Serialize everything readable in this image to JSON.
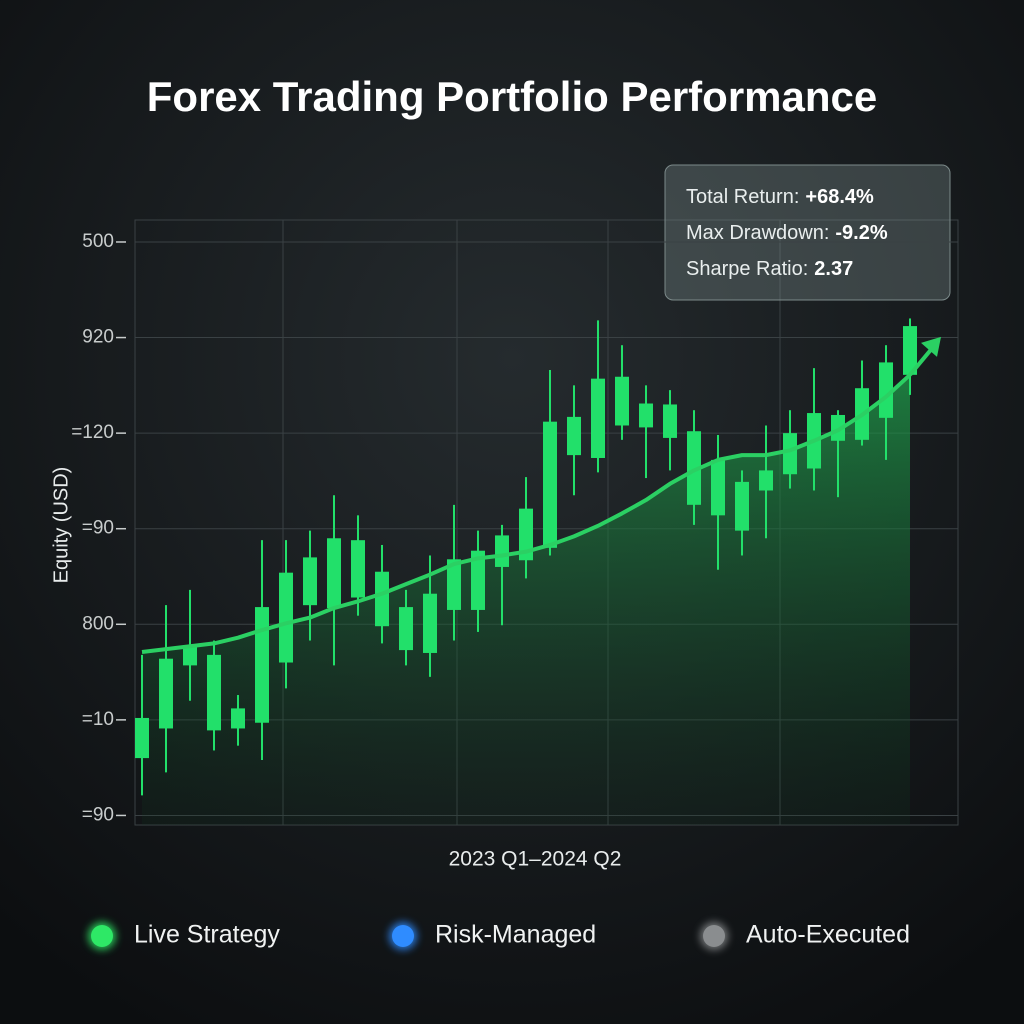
{
  "chart_data": {
    "type": "candlestick",
    "title": "Forex Trading Portfolio Performance",
    "y_label": "Equity (USD)",
    "x_label": "2023 Q1–2024 Q2",
    "categories": [
      null,
      null,
      null,
      null,
      null,
      null,
      null,
      null,
      null,
      null,
      null,
      null,
      null,
      null,
      null,
      null,
      null,
      null,
      null,
      null,
      null,
      null,
      null,
      null,
      null,
      null,
      null,
      null,
      null,
      null,
      null,
      null,
      null
    ],
    "candles": {
      "color": "#22e06a",
      "open": [
        0.6,
        0.91,
        1.57,
        0.89,
        0.91,
        0.97,
        1.6,
        2.2,
        2.17,
        2.28,
        1.98,
        1.73,
        1.7,
        2.15,
        2.15,
        2.6,
        2.67,
        2.8,
        3.77,
        3.74,
        4.08,
        4.06,
        3.95,
        3.25,
        3.14,
        2.98,
        3.4,
        3.57,
        3.63,
        3.92,
        3.93,
        4.16,
        4.61
      ],
      "high": [
        1.68,
        2.2,
        2.36,
        1.83,
        1.26,
        2.88,
        2.88,
        2.98,
        3.35,
        3.14,
        2.83,
        2.36,
        2.72,
        3.25,
        2.98,
        3.04,
        3.54,
        4.66,
        4.5,
        5.18,
        4.92,
        4.5,
        4.45,
        4.24,
        3.98,
        3.61,
        4.08,
        4.24,
        4.68,
        4.24,
        4.76,
        4.92,
        5.2
      ],
      "low": [
        0.21,
        0.45,
        1.2,
        0.68,
        0.73,
        0.58,
        1.33,
        1.83,
        1.57,
        2.09,
        1.8,
        1.57,
        1.45,
        1.83,
        1.92,
        1.99,
        2.48,
        2.72,
        3.35,
        3.59,
        3.93,
        3.53,
        3.61,
        3.04,
        2.57,
        2.72,
        2.9,
        3.42,
        3.4,
        3.33,
        3.87,
        3.72,
        4.4
      ],
      "close": [
        1.02,
        1.64,
        1.78,
        1.68,
        1.12,
        2.18,
        2.54,
        2.7,
        2.9,
        2.88,
        2.55,
        2.18,
        2.32,
        2.68,
        2.77,
        2.93,
        3.21,
        4.12,
        4.17,
        4.57,
        4.59,
        4.31,
        4.3,
        4.02,
        3.72,
        3.49,
        3.61,
        4.0,
        4.21,
        4.19,
        4.47,
        4.74,
        5.12
      ]
    },
    "trend": {
      "color": "#2bd063",
      "values": [
        1.71,
        1.74,
        1.77,
        1.8,
        1.86,
        1.94,
        2.01,
        2.07,
        2.17,
        2.24,
        2.32,
        2.42,
        2.52,
        2.63,
        2.69,
        2.72,
        2.76,
        2.83,
        2.92,
        3.03,
        3.16,
        3.3,
        3.47,
        3.61,
        3.72,
        3.77,
        3.77,
        3.82,
        3.92,
        4.03,
        4.19,
        4.38,
        4.61
      ]
    },
    "ylim": [
      -0.1,
      6.23
    ],
    "yticks": [
      {
        "value": 0,
        "label": "=90"
      },
      {
        "value": 1,
        "label": "=10"
      },
      {
        "value": 2,
        "label": "800"
      },
      {
        "value": 3,
        "label": "=90"
      },
      {
        "value": 4,
        "label": "=120"
      },
      {
        "value": 5,
        "label": "920"
      },
      {
        "value": 6,
        "label": "500"
      }
    ],
    "grid": true,
    "stats": [
      {
        "label": "Total Return:",
        "value": "+68.4%"
      },
      {
        "label": "Max Drawdown:",
        "value": "-9.2%"
      },
      {
        "label": "Sharpe Ratio:",
        "value": "2.37"
      }
    ],
    "legend": [
      {
        "name": "Live Strategy",
        "color": "#2ee866"
      },
      {
        "name": "Risk-Managed",
        "color": "#2f8cff"
      },
      {
        "name": "Auto-Executed",
        "color": "#8a8d8f"
      }
    ]
  }
}
